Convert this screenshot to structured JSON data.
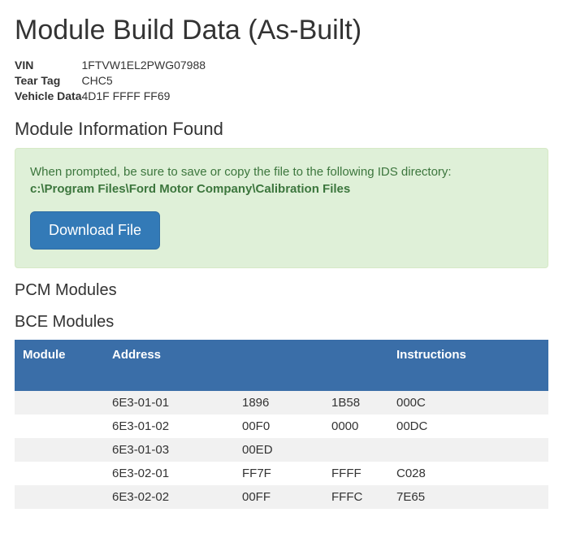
{
  "page_title": "Module Build Data (As-Built)",
  "meta": {
    "vin_label": "VIN",
    "vin_value": "1FTVW1EL2PWG07988",
    "teartag_label": "Tear Tag",
    "teartag_value": "CHC5",
    "vdata_label": "Vehicle Data",
    "vdata_value": "4D1F FFFF FF69"
  },
  "section_module_info": "Module Information Found",
  "alert": {
    "line1": "When prompted, be sure to save or copy the file to the following IDS directory:",
    "line2": "c:\\Program Files\\Ford Motor Company\\Calibration Files",
    "button": "Download File"
  },
  "section_pcm": "PCM Modules",
  "section_bce": "BCE Modules",
  "table": {
    "headers": {
      "module": "Module",
      "address": "Address",
      "col3": "",
      "col4": "",
      "instructions": "Instructions"
    },
    "header_bg": "#3a6ea8",
    "header_fg": "#ffffff",
    "stripe_even": "#f1f1f1",
    "stripe_odd": "#ffffff",
    "rows": [
      {
        "module": "",
        "address": "6E3-01-01",
        "d1": "1896",
        "d2": "1B58",
        "instr": "000C"
      },
      {
        "module": "",
        "address": "6E3-01-02",
        "d1": "00F0",
        "d2": "0000",
        "instr": "00DC"
      },
      {
        "module": "",
        "address": "6E3-01-03",
        "d1": "00ED",
        "d2": "",
        "instr": ""
      },
      {
        "module": "",
        "address": "6E3-02-01",
        "d1": "FF7F",
        "d2": "FFFF",
        "instr": "C028"
      },
      {
        "module": "",
        "address": "6E3-02-02",
        "d1": "00FF",
        "d2": "FFFC",
        "instr": "7E65"
      }
    ]
  },
  "colors": {
    "alert_bg": "#dff0d8",
    "alert_border": "#d6e9c6",
    "alert_text": "#3c763d",
    "btn_bg": "#337ab7",
    "btn_border": "#2e6da4",
    "btn_text": "#ffffff"
  }
}
